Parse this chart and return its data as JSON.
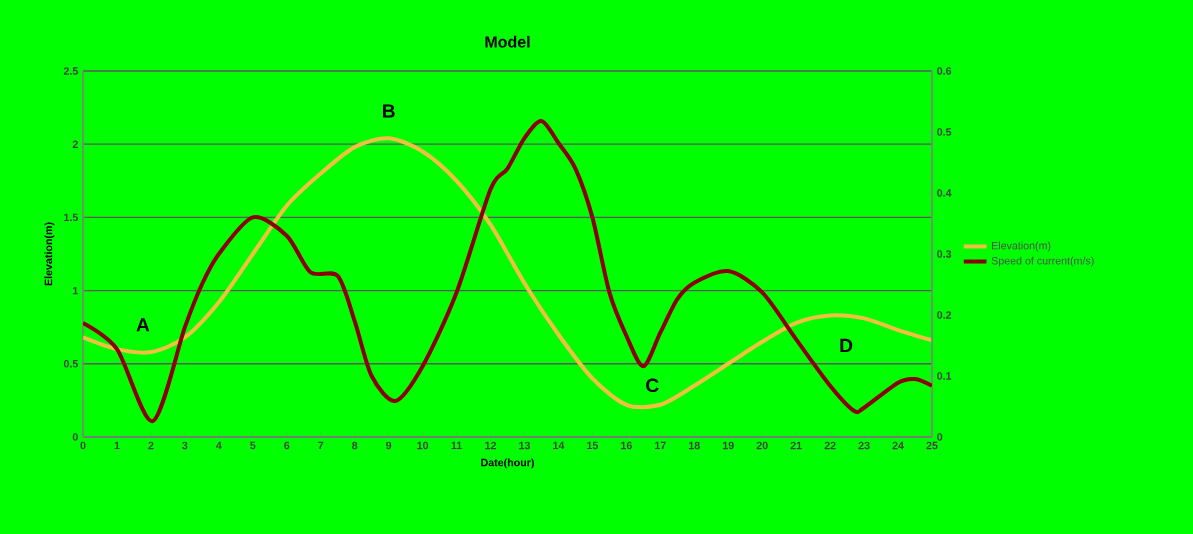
{
  "chart_data": {
    "type": "line",
    "title": "Model",
    "xlabel": "Date(hour)",
    "ylabel": "Elevation(m)",
    "xlim": [
      0,
      25
    ],
    "xticks": [
      0,
      1,
      2,
      3,
      4,
      5,
      6,
      7,
      8,
      9,
      10,
      11,
      12,
      13,
      14,
      15,
      16,
      17,
      18,
      19,
      20,
      21,
      22,
      23,
      24,
      25
    ],
    "ylim": [
      0,
      2.5
    ],
    "yticks": [
      0,
      0.5,
      1,
      1.5,
      2,
      2.5
    ],
    "y2lim": [
      0,
      0.6
    ],
    "y2ticks": [
      0,
      0.1,
      0.2,
      0.3,
      0.4,
      0.5,
      0.6
    ],
    "grid": "y",
    "legend": "right",
    "marker": "none",
    "line_style": "solid",
    "series": [
      {
        "name": "Elevation(m)",
        "color": "#f0c040",
        "x": [
          0,
          1,
          2,
          3,
          4,
          5,
          6,
          7,
          8,
          9,
          10,
          11,
          12,
          13,
          14,
          15,
          16,
          17,
          18,
          19,
          20,
          21,
          22,
          23,
          24,
          25
        ],
        "values": [
          0.68,
          0.6,
          0.58,
          0.68,
          0.92,
          1.25,
          1.58,
          1.8,
          1.98,
          2.04,
          1.95,
          1.75,
          1.45,
          1.05,
          0.7,
          0.4,
          0.22,
          0.22,
          0.35,
          0.5,
          0.65,
          0.78,
          0.83,
          0.81,
          0.73,
          0.66
        ]
      },
      {
        "name": "Speed of current(m/s)",
        "color": "#8b0000",
        "axis": "y2",
        "x": [
          0,
          1,
          2.05,
          3,
          3.5,
          4,
          5,
          6,
          6.7,
          7.5,
          8,
          8.5,
          9.2,
          10,
          11,
          12,
          12.5,
          13,
          13.5,
          14,
          14.5,
          15,
          15.5,
          16,
          16.5,
          17,
          17.5,
          18,
          19,
          20,
          21,
          22,
          22.7,
          23,
          24,
          24.5,
          25
        ],
        "values": [
          0.187,
          0.144,
          0.026,
          0.18,
          0.25,
          0.3,
          0.36,
          0.33,
          0.27,
          0.264,
          0.19,
          0.1,
          0.059,
          0.116,
          0.237,
          0.406,
          0.44,
          0.49,
          0.518,
          0.482,
          0.44,
          0.36,
          0.237,
          0.166,
          0.116,
          0.171,
          0.226,
          0.253,
          0.272,
          0.237,
          0.16,
          0.084,
          0.043,
          0.048,
          0.089,
          0.095,
          0.084
        ]
      }
    ],
    "annotations": [
      {
        "text": "A",
        "x": 2,
        "y": 0.58
      },
      {
        "text": "B",
        "x": 9,
        "y": 2.04
      },
      {
        "text": "C",
        "x": 17,
        "y": 0.22
      },
      {
        "text": "D",
        "x": 22,
        "y": 0.83
      }
    ]
  }
}
